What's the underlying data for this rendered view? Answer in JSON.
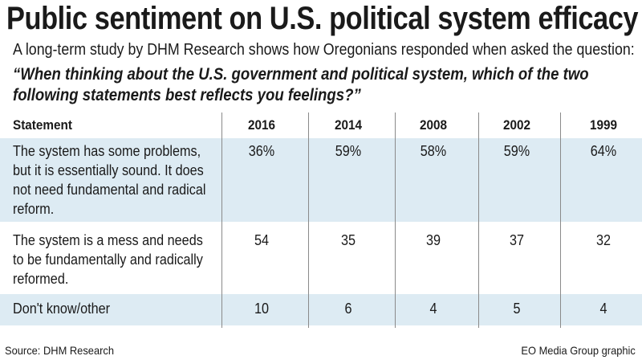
{
  "title": "Public sentiment on U.S. political system efficacy",
  "subtitle": "A long-term study by DHM Research shows how Oregonians responded when asked the question:",
  "question": "“When thinking about the U.S. government and political system, which of the two following statements best reflects you feelings?”",
  "source": "Source: DHM Research",
  "credit": "EO Media Group graphic",
  "band_color": "#ddebf3",
  "chart_data": {
    "type": "table",
    "columns": [
      "Statement",
      "2016",
      "2014",
      "2008",
      "2002",
      "1999"
    ],
    "rows": [
      {
        "statement": "The system has some problems, but it is essentially sound. It does not need fundamental and radical reform.",
        "values": [
          "36%",
          "59%",
          "58%",
          "59%",
          "64%"
        ]
      },
      {
        "statement": "The system is a mess and needs to be fundamentally and radically reformed.",
        "values": [
          "54",
          "35",
          "39",
          "37",
          "32"
        ]
      },
      {
        "statement": "Don't know/other",
        "values": [
          "10",
          "6",
          "4",
          "5",
          "4"
        ]
      }
    ]
  }
}
